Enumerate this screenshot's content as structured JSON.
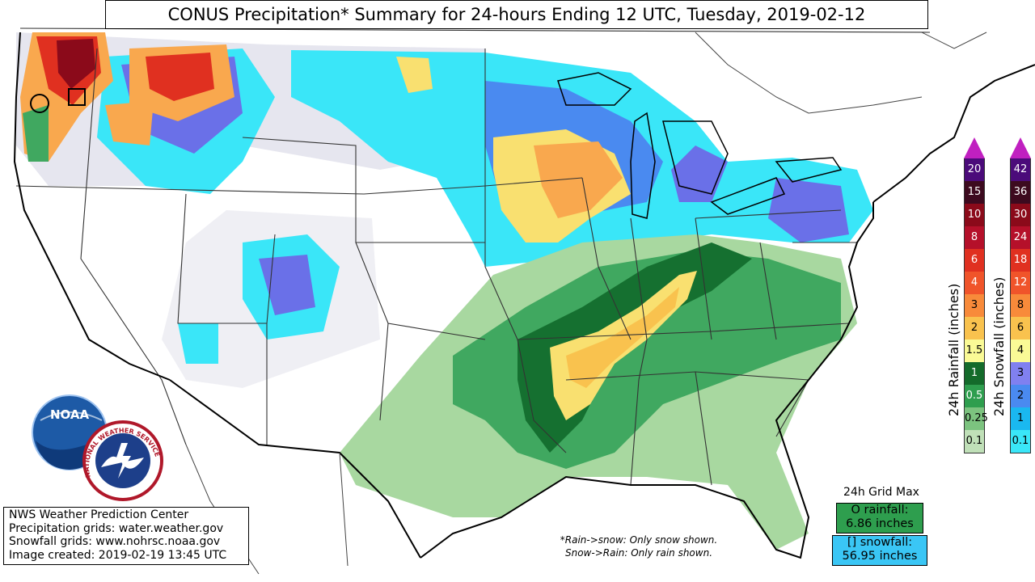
{
  "title": "CONUS Precipitation* Summary for 24-hours Ending 12 UTC, Tuesday, 2019-02-12",
  "credits": [
    "NWS Weather Prediction Center",
    "Precipitation grids: water.weather.gov",
    "Snowfall grids: www.nohrsc.noaa.gov",
    "Image created: 2019-02-19 13:45 UTC"
  ],
  "logos": {
    "noaa": "NOAA",
    "nws": "NATIONAL WEATHER SERVICE"
  },
  "note": {
    "line1": "*Rain->snow: Only snow shown.",
    "line2": "Snow->Rain: Only rain shown."
  },
  "grid_max": {
    "label": "24h Grid Max",
    "rain_line1": "O rainfall:",
    "rain_line2": "6.86 inches",
    "snow_line1": "[] snowfall:",
    "snow_line2": "56.95 inches",
    "rain_color": "#2e9e4e",
    "snow_color": "#3ac6f5"
  },
  "rain_scale": {
    "label": "24h Rainfall (inches)",
    "values": [
      "20",
      "15",
      "10",
      "8",
      "6",
      "4",
      "3",
      "2",
      "1.5",
      "1",
      "0.5",
      "0.25",
      "0.1"
    ],
    "colors": [
      "#4b0b7a",
      "#3d0a1f",
      "#8b0a1a",
      "#b5102a",
      "#e03020",
      "#f0542a",
      "#f88a3a",
      "#f9c24e",
      "#fafa96",
      "#146b2b",
      "#2e9e4e",
      "#7cc37f",
      "#c0e0b8"
    ]
  },
  "snow_scale": {
    "label": "24h Snowfall (inches)",
    "values": [
      "42",
      "36",
      "30",
      "24",
      "18",
      "12",
      "8",
      "6",
      "4",
      "3",
      "2",
      "1",
      "0.1"
    ],
    "colors": [
      "#4b0b7a",
      "#3d0a1f",
      "#8b0a1a",
      "#b5102a",
      "#e03020",
      "#f0542a",
      "#f88a3a",
      "#f9c24e",
      "#fafa96",
      "#8080f0",
      "#4a8af0",
      "#1ab8f0",
      "#3ae6f8"
    ]
  },
  "legend_cap_color": "#c020c0",
  "precip_colors": {
    "trace": "#e0e0ec",
    "snow_light": "#3ae6f8",
    "snow_med": "#4a8af0",
    "snow_heavy": "#8080f0",
    "yellow": "#f9e070",
    "orange": "#f9a84e",
    "rain_light": "#a8d8a0",
    "rain_med": "#40a860",
    "rain_heavy": "#157030"
  }
}
